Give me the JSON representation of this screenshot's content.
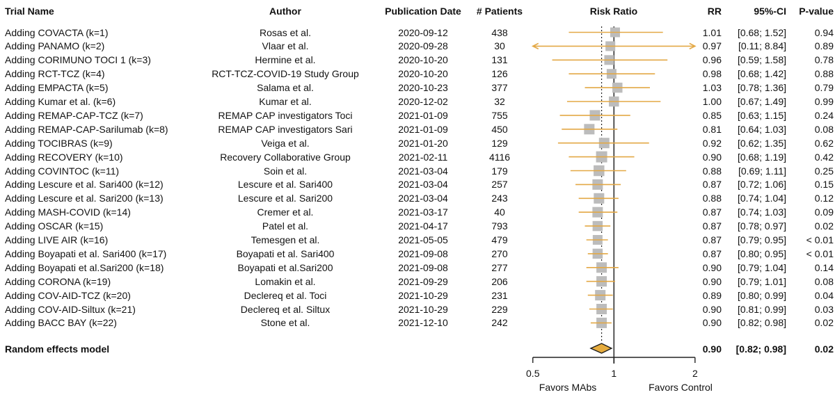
{
  "headers": {
    "trial": "Trial Name",
    "author": "Author",
    "date": "Publication Date",
    "patients": "# Patients",
    "risk_ratio": "Risk Ratio",
    "rr": "RR",
    "ci": "95%-CI",
    "p": "P-value"
  },
  "chart_data": {
    "type": "forest",
    "x_scale": "log2",
    "xlim": [
      0.5,
      2
    ],
    "axis_ticks": [
      0.5,
      1,
      2
    ],
    "axis_tick_labels": [
      "0.5",
      "1",
      "2"
    ],
    "favors_left": "Favors MAbs",
    "favors_right": "Favors Control",
    "reference_line": 1,
    "pooled_line": 0.9,
    "colors": {
      "ci_line": "#E3A845",
      "square": "#BCBCBC",
      "diamond_fill": "#E6AC3E",
      "diamond_border": "#1c1c1c",
      "ref_line": "#444444",
      "dotted_line": "#222222",
      "axis": "#222222"
    },
    "rows": [
      {
        "trial": "Adding COVACTA (k=1)",
        "author": "Rosas et al.",
        "date": "2020-09-12",
        "patients": "438",
        "rr": 1.01,
        "low": 0.68,
        "high": 1.52,
        "rr_text": "1.01",
        "ci_text": "[0.68; 1.52]",
        "p": "0.94",
        "size": 14
      },
      {
        "trial": "Adding PANAMO (k=2)",
        "author": "Vlaar et al.",
        "date": "2020-09-28",
        "patients": "30",
        "rr": 0.97,
        "low": 0.11,
        "high": 8.84,
        "rr_text": "0.97",
        "ci_text": "[0.11; 8.84]",
        "p": "0.89",
        "size": 14
      },
      {
        "trial": "Adding CORIMUNO TOCI 1 (k=3)",
        "author": "Hermine et al.",
        "date": "2020-10-20",
        "patients": "131",
        "rr": 0.96,
        "low": 0.59,
        "high": 1.58,
        "rr_text": "0.96",
        "ci_text": "[0.59; 1.58]",
        "p": "0.78",
        "size": 14
      },
      {
        "trial": "Adding RCT-TCZ (k=4)",
        "author": "RCT-TCZ-COVID-19 Study Group",
        "date": "2020-10-20",
        "patients": "126",
        "rr": 0.98,
        "low": 0.68,
        "high": 1.42,
        "rr_text": "0.98",
        "ci_text": "[0.68; 1.42]",
        "p": "0.88",
        "size": 14
      },
      {
        "trial": "Adding EMPACTA (k=5)",
        "author": "Salama et al.",
        "date": "2020-10-23",
        "patients": "377",
        "rr": 1.03,
        "low": 0.78,
        "high": 1.36,
        "rr_text": "1.03",
        "ci_text": "[0.78; 1.36]",
        "p": "0.79",
        "size": 14.5
      },
      {
        "trial": "Adding Kumar et al. (k=6)",
        "author": "Kumar et al.",
        "date": "2020-12-02",
        "patients": "32",
        "rr": 1.0,
        "low": 0.67,
        "high": 1.49,
        "rr_text": "1.00",
        "ci_text": "[0.67; 1.49]",
        "p": "0.99",
        "size": 14.5
      },
      {
        "trial": "Adding REMAP-CAP-TCZ (k=7)",
        "author": "REMAP CAP investigators Toci",
        "date": "2021-01-09",
        "patients": "755",
        "rr": 0.85,
        "low": 0.63,
        "high": 1.15,
        "rr_text": "0.85",
        "ci_text": "[0.63; 1.15]",
        "p": "0.24",
        "size": 15
      },
      {
        "trial": "Adding REMAP-CAP-Sarilumab (k=8)",
        "author": "REMAP CAP investigators Sari",
        "date": "2021-01-09",
        "patients": "450",
        "rr": 0.81,
        "low": 0.64,
        "high": 1.03,
        "rr_text": "0.81",
        "ci_text": "[0.64; 1.03]",
        "p": "0.08",
        "size": 15
      },
      {
        "trial": "Adding TOCIBRAS (k=9)",
        "author": "Veiga et al.",
        "date": "2021-01-20",
        "patients": "129",
        "rr": 0.92,
        "low": 0.62,
        "high": 1.35,
        "rr_text": "0.92",
        "ci_text": "[0.62; 1.35]",
        "p": "0.62",
        "size": 15
      },
      {
        "trial": "Adding RECOVERY (k=10)",
        "author": "Recovery Collaborative Group",
        "date": "2021-02-11",
        "patients": "4116",
        "rr": 0.9,
        "low": 0.68,
        "high": 1.19,
        "rr_text": "0.90",
        "ci_text": "[0.68; 1.19]",
        "p": "0.42",
        "size": 16
      },
      {
        "trial": "Adding COVINTOC (k=11)",
        "author": "Soin et al.",
        "date": "2021-03-04",
        "patients": "179",
        "rr": 0.88,
        "low": 0.69,
        "high": 1.11,
        "rr_text": "0.88",
        "ci_text": "[0.69; 1.11]",
        "p": "0.25",
        "size": 15.5
      },
      {
        "trial": "Adding Lescure et al. Sari400 (k=12)",
        "author": "Lescure et al. Sari400",
        "date": "2021-03-04",
        "patients": "257",
        "rr": 0.87,
        "low": 0.72,
        "high": 1.06,
        "rr_text": "0.87",
        "ci_text": "[0.72; 1.06]",
        "p": "0.15",
        "size": 15
      },
      {
        "trial": "Adding Lescure et al. Sari200 (k=13)",
        "author": "Lescure et al. Sari200",
        "date": "2021-03-04",
        "patients": "243",
        "rr": 0.88,
        "low": 0.74,
        "high": 1.04,
        "rr_text": "0.88",
        "ci_text": "[0.74; 1.04]",
        "p": "0.12",
        "size": 15
      },
      {
        "trial": "Adding MASH-COVID (k=14)",
        "author": "Cremer et al.",
        "date": "2021-03-17",
        "patients": "40",
        "rr": 0.87,
        "low": 0.74,
        "high": 1.03,
        "rr_text": "0.87",
        "ci_text": "[0.74; 1.03]",
        "p": "0.09",
        "size": 15
      },
      {
        "trial": "Adding OSCAR (k=15)",
        "author": "Patel et al.",
        "date": "2021-04-17",
        "patients": "793",
        "rr": 0.87,
        "low": 0.78,
        "high": 0.97,
        "rr_text": "0.87",
        "ci_text": "[0.78; 0.97]",
        "p": "0.02",
        "size": 14.5
      },
      {
        "trial": "Adding LIVE  AIR (k=16)",
        "author": "Temesgen et al.",
        "date": "2021-05-05",
        "patients": "479",
        "rr": 0.87,
        "low": 0.79,
        "high": 0.95,
        "rr_text": "0.87",
        "ci_text": "[0.79; 0.95]",
        "p": "< 0.01",
        "size": 14
      },
      {
        "trial": "Adding Boyapati et al. Sari400 (k=17)",
        "author": "Boyapati et al. Sari400",
        "date": "2021-09-08",
        "patients": "270",
        "rr": 0.87,
        "low": 0.8,
        "high": 0.95,
        "rr_text": "0.87",
        "ci_text": "[0.80; 0.95]",
        "p": "< 0.01",
        "size": 14.5
      },
      {
        "trial": "Adding Boyapati et al.Sari200 (k=18)",
        "author": "Boyapati et al.Sari200",
        "date": "2021-09-08",
        "patients": "277",
        "rr": 0.9,
        "low": 0.79,
        "high": 1.04,
        "rr_text": "0.90",
        "ci_text": "[0.79; 1.04]",
        "p": "0.14",
        "size": 15
      },
      {
        "trial": "Adding CORONA (k=19)",
        "author": "Lomakin et al.",
        "date": "2021-09-29",
        "patients": "206",
        "rr": 0.9,
        "low": 0.79,
        "high": 1.01,
        "rr_text": "0.90",
        "ci_text": "[0.79; 1.01]",
        "p": "0.08",
        "size": 15
      },
      {
        "trial": "Adding COV-AID-TCZ (k=20)",
        "author": "Declereq et al. Toci",
        "date": "2021-10-29",
        "patients": "231",
        "rr": 0.89,
        "low": 0.8,
        "high": 0.99,
        "rr_text": "0.89",
        "ci_text": "[0.80; 0.99]",
        "p": "0.04",
        "size": 15
      },
      {
        "trial": "Adding COV-AID-Siltux (k=21)",
        "author": "Declereq et al. Siltux",
        "date": "2021-10-29",
        "patients": "229",
        "rr": 0.9,
        "low": 0.81,
        "high": 0.99,
        "rr_text": "0.90",
        "ci_text": "[0.81; 0.99]",
        "p": "0.03",
        "size": 15
      },
      {
        "trial": "Adding BACC BAY (k=22)",
        "author": "Stone et al.",
        "date": "2021-12-10",
        "patients": "242",
        "rr": 0.9,
        "low": 0.82,
        "high": 0.98,
        "rr_text": "0.90",
        "ci_text": "[0.82; 0.98]",
        "p": "0.02",
        "size": 15
      }
    ],
    "summary": {
      "label": "Random effects model",
      "rr": 0.9,
      "low": 0.82,
      "high": 0.98,
      "rr_text": "0.90",
      "ci_text": "[0.82; 0.98]",
      "p": "0.02"
    }
  }
}
